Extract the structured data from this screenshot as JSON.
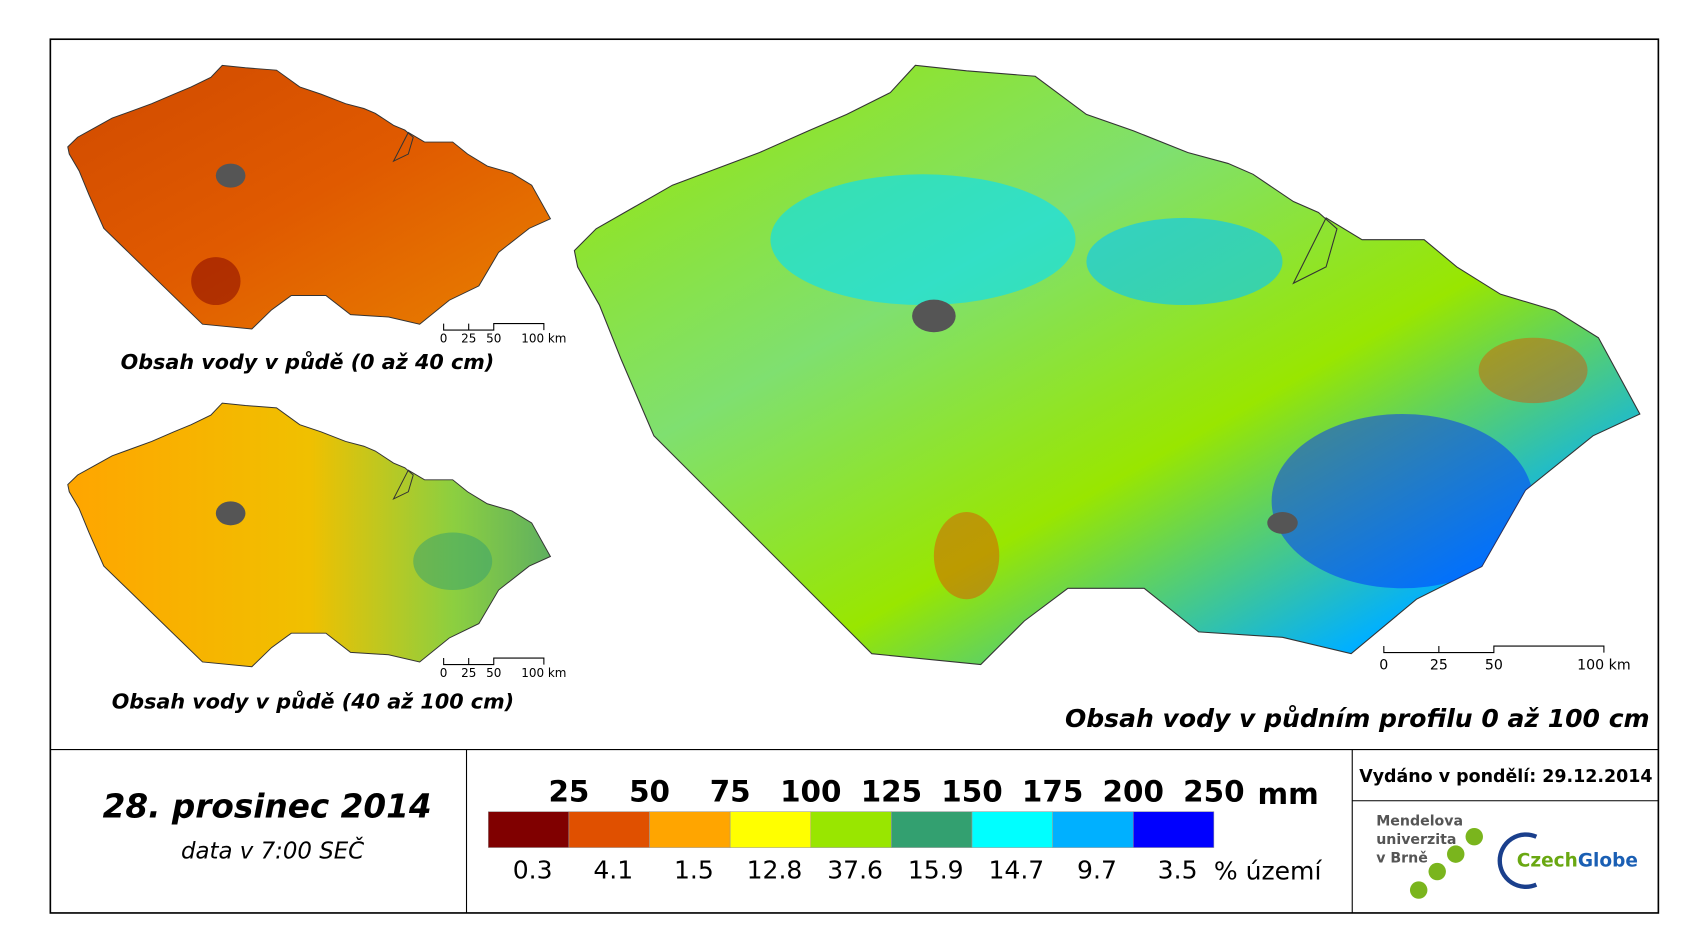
{
  "maps": [
    {
      "title": "Obsah vody v půdě (0 až 40 cm)",
      "scale": [
        "0",
        "25",
        "50",
        "100 km"
      ]
    },
    {
      "title": "Obsah vody v půdě (40 až 100 cm)",
      "scale": [
        "0",
        "25",
        "50",
        "100 km"
      ]
    },
    {
      "title": "Obsah vody v půdním profilu 0 až 100 cm",
      "scale": [
        "0",
        "25",
        "50",
        "100 km"
      ]
    }
  ],
  "date": "28. prosinec 2014",
  "time": "data v 7:00 SEČ",
  "legend": {
    "thresholds": [
      25,
      50,
      75,
      100,
      125,
      150,
      175,
      200,
      250
    ],
    "unit": "mm",
    "colors": [
      "#800000",
      "#e05000",
      "#ffa500",
      "#ffff00",
      "#99e600",
      "#33a070",
      "#00ffff",
      "#00b0ff",
      "#0000ff"
    ],
    "shares": [
      0.3,
      4.1,
      1.5,
      12.8,
      37.6,
      15.9,
      14.7,
      9.7,
      3.5
    ],
    "share_unit": "% území"
  },
  "issued": "Vydáno v pondělí: 29.12.2014",
  "logos": {
    "mendel": [
      "Mendelova",
      "univerzita",
      "v Brně"
    ],
    "czech": "Czech",
    "globe": "Globe"
  }
}
